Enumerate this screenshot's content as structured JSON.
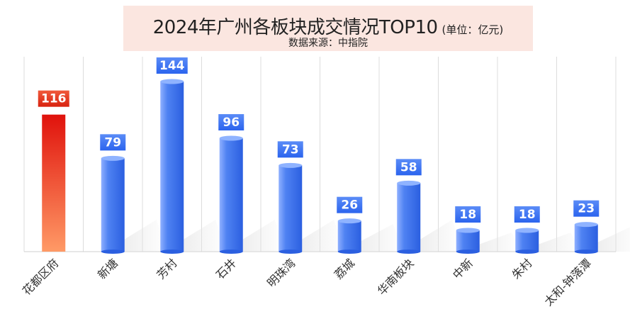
{
  "chart_data": {
    "type": "bar",
    "title": "2024年广州各板块成交情况TOP10",
    "unit": "(单位：亿元)",
    "subtitle": "数据来源：中指院",
    "categories": [
      "花都区府",
      "新塘",
      "芳村",
      "石井",
      "明珠湾",
      "荔城",
      "华南板块",
      "中新",
      "朱村",
      "太和-钟落潭"
    ],
    "values": [
      116,
      79,
      144,
      96,
      73,
      26,
      58,
      18,
      18,
      23
    ],
    "highlight_index": 0,
    "ylim": [
      0,
      150
    ],
    "grid": "vertical",
    "colors": {
      "bar": "#4f82f2",
      "highlight_bar": "#e51a12",
      "label_bg": "#2f6ff2",
      "highlight_label_bg": "#e8321c",
      "title_bg": "#fbe6e0"
    }
  }
}
